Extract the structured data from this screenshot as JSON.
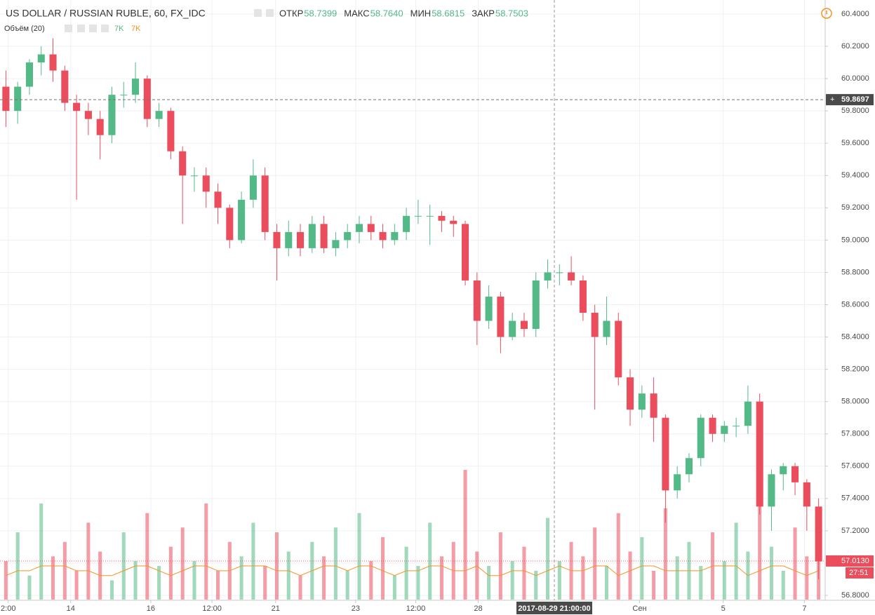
{
  "chart_data": {
    "type": "candlestick",
    "title": "US DOLLAR / RUSSIAN RUBLE, 60, FX_IDC",
    "ohlc_legend": [
      {
        "label": "ОТКР",
        "value": "58.7399"
      },
      {
        "label": "МАКС",
        "value": "58.7640"
      },
      {
        "label": "МИН",
        "value": "58.6815"
      },
      {
        "label": "ЗАКР",
        "value": "58.7503"
      }
    ],
    "volume_legend": {
      "title": "Объём (20)",
      "values": [
        "7K",
        "7K"
      ]
    },
    "up_color": "#53b987",
    "down_color": "#eb4d5c",
    "ma_color": "#f7931e",
    "open": [
      59.95,
      59.8,
      59.95,
      60.1,
      60.15,
      60.05,
      59.85,
      59.8,
      59.75,
      59.65,
      59.9,
      59.9,
      60.0,
      59.75,
      59.8,
      59.55,
      59.4,
      59.4,
      59.3,
      59.2,
      59.0,
      59.25,
      59.4,
      59.05,
      58.95,
      59.05,
      58.95,
      59.1,
      58.95,
      59.0,
      59.05,
      59.1,
      59.05,
      59.0,
      59.05,
      59.15,
      59.15,
      59.15,
      59.12,
      59.1,
      58.75,
      58.5,
      58.65,
      58.4,
      58.5,
      58.45,
      58.75,
      58.8,
      58.8,
      58.75,
      58.55,
      58.4,
      58.5,
      58.15,
      57.95,
      58.05,
      57.9,
      57.45,
      57.55,
      57.65,
      57.9,
      57.8,
      57.85,
      57.85,
      58.0,
      57.35,
      57.55,
      57.6,
      57.5,
      57.35
    ],
    "high": [
      60.05,
      59.98,
      60.12,
      60.2,
      60.25,
      60.08,
      59.9,
      59.85,
      59.8,
      59.95,
      59.98,
      60.1,
      60.02,
      59.85,
      59.82,
      59.58,
      59.45,
      59.45,
      59.35,
      59.22,
      59.3,
      59.5,
      59.45,
      59.1,
      59.12,
      59.1,
      59.15,
      59.15,
      59.05,
      59.1,
      59.15,
      59.15,
      59.1,
      59.1,
      59.2,
      59.25,
      59.22,
      59.18,
      59.15,
      59.12,
      58.8,
      58.72,
      58.68,
      58.55,
      58.55,
      58.8,
      58.88,
      58.85,
      58.9,
      58.78,
      58.6,
      58.65,
      58.55,
      58.2,
      58.1,
      58.15,
      57.92,
      57.6,
      57.68,
      57.92,
      57.92,
      57.88,
      57.9,
      58.1,
      58.05,
      57.58,
      57.62,
      57.62,
      57.52,
      57.4
    ],
    "low": [
      59.7,
      59.72,
      59.9,
      60.02,
      59.98,
      59.8,
      59.25,
      59.65,
      59.5,
      59.6,
      59.82,
      59.85,
      59.7,
      59.7,
      59.5,
      59.1,
      59.3,
      59.2,
      59.1,
      58.95,
      58.98,
      59.2,
      59.0,
      58.75,
      58.9,
      58.9,
      58.92,
      58.92,
      58.9,
      58.95,
      58.98,
      59.0,
      58.95,
      58.97,
      59.0,
      59.1,
      58.97,
      59.05,
      59.02,
      58.72,
      58.35,
      58.45,
      58.3,
      58.38,
      58.4,
      58.4,
      58.7,
      58.72,
      58.72,
      58.5,
      57.95,
      58.35,
      58.1,
      57.85,
      57.9,
      57.75,
      57.25,
      57.4,
      57.5,
      57.6,
      57.75,
      57.75,
      57.78,
      57.8,
      57.3,
      57.2,
      57.45,
      57.42,
      57.2,
      56.9
    ],
    "close": [
      59.8,
      59.95,
      60.1,
      60.15,
      60.05,
      59.85,
      59.8,
      59.75,
      59.65,
      59.9,
      59.9,
      60.0,
      59.75,
      59.8,
      59.55,
      59.4,
      59.4,
      59.3,
      59.2,
      59.0,
      59.25,
      59.4,
      59.05,
      58.95,
      59.05,
      58.95,
      59.1,
      58.95,
      59.0,
      59.05,
      59.1,
      59.05,
      59.0,
      59.05,
      59.15,
      59.15,
      59.15,
      59.12,
      59.1,
      58.75,
      58.5,
      58.65,
      58.4,
      58.5,
      58.45,
      58.75,
      58.8,
      58.8,
      58.75,
      58.55,
      58.4,
      58.5,
      58.15,
      57.95,
      58.05,
      57.9,
      57.45,
      57.55,
      57.65,
      57.9,
      57.8,
      57.85,
      57.85,
      58.0,
      57.35,
      57.55,
      57.6,
      57.5,
      57.35,
      57.01
    ],
    "volume": [
      8,
      14,
      5,
      20,
      9,
      12,
      6,
      16,
      10,
      4,
      14,
      8,
      18,
      7,
      11,
      15,
      8,
      20,
      6,
      12,
      9,
      16,
      7,
      14,
      10,
      5,
      12,
      9,
      15,
      6,
      18,
      8,
      13,
      5,
      11,
      7,
      16,
      9,
      12,
      27,
      10,
      7,
      14,
      8,
      11,
      6,
      17,
      8,
      12,
      9,
      15,
      7,
      18,
      10,
      13,
      6,
      19,
      9,
      12,
      7,
      14,
      8,
      16,
      10,
      20,
      11,
      6,
      15,
      9,
      17
    ],
    "volume_ma": [
      5,
      6,
      6,
      7,
      7,
      7,
      6,
      6,
      5,
      5,
      6,
      7,
      7,
      6,
      5,
      6,
      7,
      7,
      6,
      6,
      7,
      7,
      7,
      6,
      6,
      5,
      6,
      7,
      7,
      6,
      7,
      7,
      6,
      5,
      6,
      6,
      7,
      7,
      6,
      6,
      7,
      5,
      5,
      6,
      6,
      5,
      6,
      7,
      6,
      6,
      7,
      7,
      5,
      6,
      7,
      7,
      6,
      6,
      6,
      6,
      7,
      7,
      7,
      5,
      6,
      7,
      7,
      6,
      5,
      6
    ],
    "xlim": [
      0,
      70
    ],
    "xticks": [
      {
        "value": 0.7,
        "label": "2:00"
      },
      {
        "value": 6,
        "label": "14"
      },
      {
        "value": 12.8,
        "label": "16"
      },
      {
        "value": 18,
        "label": "12:00"
      },
      {
        "value": 23.4,
        "label": "21"
      },
      {
        "value": 30.2,
        "label": "23"
      },
      {
        "value": 35.3,
        "label": "12:00"
      },
      {
        "value": 40.6,
        "label": "28"
      },
      {
        "value": 54.3,
        "label": "Сен"
      },
      {
        "value": 61.4,
        "label": "5"
      },
      {
        "value": 68.3,
        "label": "7"
      }
    ],
    "ylim": [
      56.8,
      60.4
    ],
    "yticks": [
      {
        "value": 56.8,
        "label": "56.8000"
      },
      {
        "value": 57.0,
        "label": "57.0000"
      },
      {
        "value": 57.2,
        "label": "57.2000"
      },
      {
        "value": 57.4,
        "label": "57.4000"
      },
      {
        "value": 57.6,
        "label": "57.6000"
      },
      {
        "value": 57.8,
        "label": "57.8000"
      },
      {
        "value": 58.0,
        "label": "58.0000"
      },
      {
        "value": 58.2,
        "label": "58.2000"
      },
      {
        "value": 58.4,
        "label": "58.4000"
      },
      {
        "value": 58.6,
        "label": "58.6000"
      },
      {
        "value": 58.8,
        "label": "58.8000"
      },
      {
        "value": 59.0,
        "label": "59.0000"
      },
      {
        "value": 59.2,
        "label": "59.2000"
      },
      {
        "value": 59.4,
        "label": "59.4000"
      },
      {
        "value": 59.6,
        "label": "59.6000"
      },
      {
        "value": 59.8,
        "label": "59.8000"
      },
      {
        "value": 60.0,
        "label": "60.0000"
      },
      {
        "value": 60.2,
        "label": "60.2000"
      },
      {
        "value": 60.4,
        "label": "60.4000"
      }
    ],
    "grid": true,
    "crosshair": {
      "price": 59.8697,
      "time": "2017-08-29 21:00:00"
    },
    "last_price": {
      "value": 57.013,
      "label": "57.0130"
    },
    "countdown": "27:51"
  }
}
